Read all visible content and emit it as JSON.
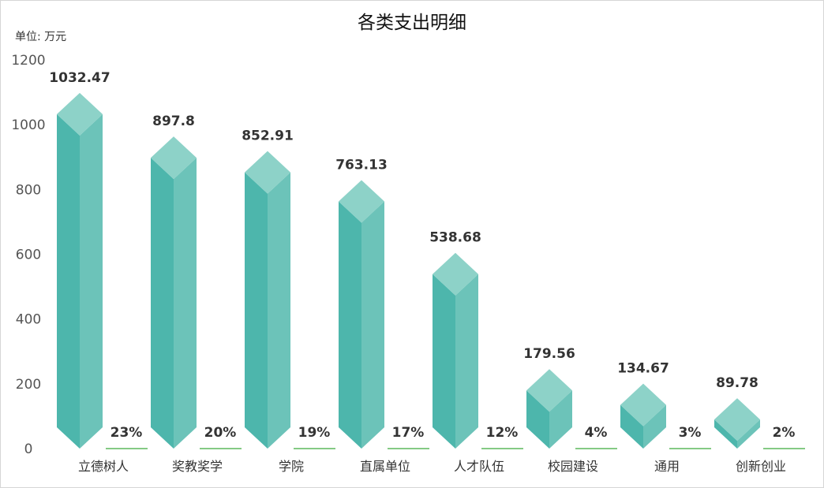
{
  "chart_data": {
    "type": "bar",
    "title": "各类支出明细",
    "unit_label": "单位: 万元",
    "ylim": [
      0,
      1200
    ],
    "yticks": [
      0,
      200,
      400,
      600,
      800,
      1000,
      1200
    ],
    "grid": false,
    "categories": [
      "立德树人",
      "奖教奖学",
      "学院",
      "直属单位",
      "人才队伍",
      "校园建设",
      "通用",
      "创新创业"
    ],
    "values": [
      1032.47,
      897.8,
      852.91,
      763.13,
      538.68,
      179.56,
      134.67,
      89.78
    ],
    "value_labels": [
      "1032.47",
      "897.8",
      "852.91",
      "763.13",
      "538.68",
      "179.56",
      "134.67",
      "89.78"
    ],
    "percent_labels": [
      "23%",
      "20%",
      "19%",
      "17%",
      "12%",
      "4%",
      "3%",
      "2%"
    ],
    "colors": {
      "bar_left": "#4db6ac",
      "bar_right": "#6cc3b9",
      "bar_top": "#8dd2c8",
      "percent_line": "#5cb85c",
      "axis_text": "#555555"
    }
  }
}
